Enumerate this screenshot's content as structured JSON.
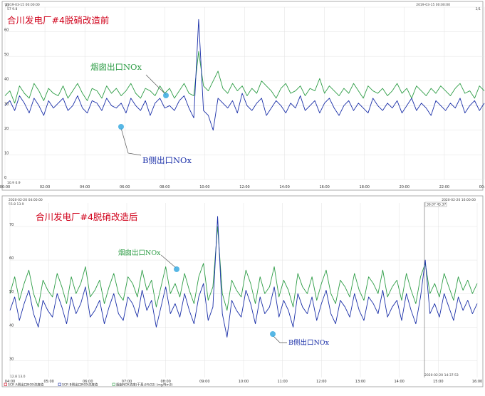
{
  "chart_data": [
    {
      "type": "line",
      "title": "合川发电厂#4脱硝改造前",
      "corner_left": "2019-03-15 00:00:00",
      "corner_right": "2019-03-15 00:00:00",
      "corner_right_small": "2/1",
      "value_box": "57 9.8",
      "bottom_left_label": "10.9 0.9",
      "x_ticks": [
        "00:00",
        "02:00",
        "04:00",
        "06:00",
        "08:00",
        "10:00",
        "12:00",
        "14:00",
        "16:00",
        "18:00",
        "20:00",
        "22:00",
        "00:00"
      ],
      "y_ticks": [
        "0",
        "10",
        "20",
        "30",
        "40",
        "50",
        "60",
        "70"
      ],
      "ylim": [
        0,
        70
      ],
      "annotations": [
        {
          "text": "烟囱出口NOx",
          "color": "#2e9d46"
        },
        {
          "text": "B侧出口NOx",
          "color": "#1a2fa8"
        }
      ],
      "series": [
        {
          "color": "#2e9d46",
          "values": [
            34,
            36,
            31,
            38,
            35,
            33,
            39,
            36,
            32,
            37,
            35,
            34,
            38,
            33,
            36,
            39,
            35,
            32,
            37,
            36,
            33,
            38,
            35,
            37,
            34,
            36,
            39,
            35,
            33,
            37,
            36,
            34,
            38,
            35,
            37,
            33,
            36,
            39,
            35,
            34,
            52,
            38,
            36,
            40,
            44,
            37,
            35,
            39,
            36,
            38,
            34,
            37,
            35,
            40,
            38,
            36,
            33,
            37,
            39,
            35,
            36,
            38,
            34,
            37,
            36,
            41,
            35,
            38,
            36,
            34,
            37,
            35,
            39,
            36,
            33,
            38,
            36,
            35,
            37,
            34,
            36,
            39,
            35,
            37,
            33,
            38,
            36,
            34,
            37,
            35,
            38,
            36,
            34,
            37,
            39,
            35,
            36,
            33,
            38,
            36
          ]
        },
        {
          "color": "#1a2fa8",
          "values": [
            30,
            32,
            28,
            34,
            31,
            27,
            33,
            30,
            26,
            32,
            29,
            31,
            33,
            28,
            30,
            34,
            29,
            27,
            32,
            31,
            28,
            33,
            30,
            29,
            31,
            27,
            33,
            30,
            28,
            32,
            26,
            31,
            33,
            29,
            30,
            28,
            32,
            34,
            29,
            25,
            65,
            28,
            26,
            20,
            33,
            31,
            29,
            32,
            27,
            35,
            30,
            28,
            31,
            33,
            26,
            29,
            32,
            30,
            27,
            31,
            29,
            34,
            28,
            30,
            32,
            27,
            31,
            33,
            29,
            26,
            30,
            32,
            28,
            31,
            29,
            27,
            33,
            30,
            28,
            31,
            29,
            32,
            27,
            30,
            33,
            28,
            31,
            29,
            26,
            32,
            30,
            28,
            31,
            29,
            33,
            27,
            30,
            32,
            28,
            31
          ]
        }
      ]
    },
    {
      "type": "line",
      "title": "合川发电厂#4脱硝改造后",
      "corner_left": "2020-02-20 04:00:00",
      "corner_right": "2020-02-20 16:00:00",
      "value_box": "55.8 13.9",
      "cursor_label": "36.07 45.37",
      "bottom_left_label": "12.8 13.0",
      "bottom_right_label": "2020-02-20 14:37:53",
      "x_ticks": [
        "04:00",
        "05:00",
        "06:00",
        "07:00",
        "08:00",
        "09:00",
        "10:00",
        "11:00",
        "12:00",
        "13:00",
        "14:00",
        "15:00",
        "16:00"
      ],
      "y_ticks": [
        "30",
        "40",
        "50",
        "60",
        "70"
      ],
      "ylim": [
        25,
        77
      ],
      "annotations": [
        {
          "text": "烟囱出口NOx",
          "color": "#2e9d46"
        },
        {
          "text": "B侧出口NOx",
          "color": "#1a2fa8"
        }
      ],
      "legend": [
        {
          "label": "SCR A侧出口NOX浓度值",
          "color": "#d0021b"
        },
        {
          "label": "SCR B侧出口NOX浓度值",
          "color": "#1a2fa8"
        },
        {
          "label": "烟囱NOX浓度(干基,6%O2) (mg/Nm3)",
          "color": "#2e9d46"
        }
      ],
      "series": [
        {
          "color": "#2e9d46",
          "values": [
            50,
            55,
            48,
            53,
            57,
            50,
            46,
            54,
            51,
            49,
            56,
            52,
            47,
            55,
            50,
            53,
            58,
            49,
            51,
            54,
            47,
            52,
            56,
            50,
            48,
            55,
            53,
            49,
            57,
            51,
            54,
            46,
            52,
            58,
            50,
            53,
            49,
            56,
            51,
            47,
            55,
            59,
            48,
            52,
            70,
            50,
            45,
            54,
            51,
            49,
            57,
            53,
            47,
            55,
            50,
            52,
            58,
            49,
            54,
            51,
            46,
            56,
            52,
            50,
            55,
            48,
            53,
            57,
            50,
            47,
            54,
            52,
            49,
            56,
            51,
            48,
            55,
            53,
            50,
            57,
            49,
            52,
            54,
            48,
            56,
            51,
            47,
            55,
            59,
            50,
            53,
            49,
            56,
            52,
            48,
            55,
            51,
            54,
            50,
            53
          ]
        },
        {
          "color": "#1a2fa8",
          "values": [
            45,
            49,
            42,
            47,
            51,
            44,
            40,
            48,
            45,
            43,
            50,
            46,
            41,
            49,
            44,
            47,
            52,
            43,
            45,
            48,
            41,
            46,
            50,
            44,
            42,
            49,
            47,
            43,
            51,
            45,
            48,
            40,
            46,
            52,
            44,
            47,
            43,
            50,
            45,
            41,
            49,
            53,
            42,
            46,
            73,
            44,
            37,
            48,
            45,
            43,
            51,
            47,
            41,
            49,
            44,
            46,
            52,
            43,
            48,
            45,
            40,
            50,
            46,
            44,
            49,
            42,
            47,
            51,
            44,
            41,
            48,
            46,
            43,
            50,
            45,
            42,
            49,
            47,
            44,
            51,
            43,
            46,
            48,
            42,
            50,
            45,
            41,
            49,
            60,
            44,
            47,
            43,
            50,
            46,
            42,
            49,
            45,
            48,
            44,
            47
          ]
        }
      ]
    }
  ]
}
